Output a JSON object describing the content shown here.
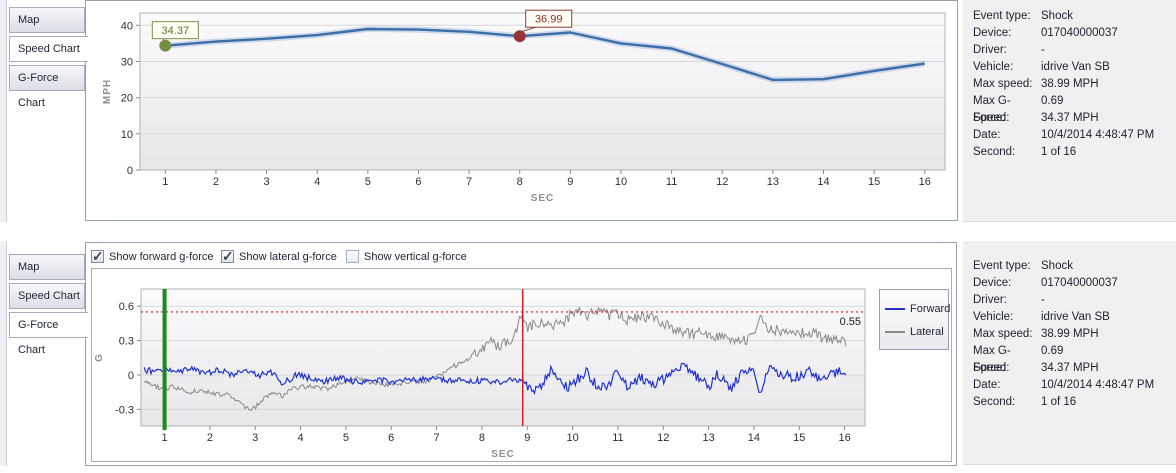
{
  "tabs": [
    {
      "label": "Map"
    },
    {
      "label": "Speed Chart"
    },
    {
      "label": "G-Force Chart"
    }
  ],
  "event_info": {
    "rows": [
      {
        "label": "Event type:",
        "value": "Shock"
      },
      {
        "label": "Device:",
        "value": "017040000037"
      },
      {
        "label": "Driver:",
        "value": "-"
      },
      {
        "label": "Vehicle:",
        "value": "idrive Van SB"
      },
      {
        "label": "Max speed:",
        "value": "38.99 MPH"
      },
      {
        "label": "Max G-Force:",
        "value": "0.69"
      },
      {
        "label": "Speed:",
        "value": "34.37 MPH"
      },
      {
        "label": "Date:",
        "value": "10/4/2014 4:48:47 PM"
      },
      {
        "label": "Second:",
        "value": "1 of 16"
      }
    ]
  },
  "gforce_controls": {
    "checkboxes": [
      {
        "label": "Show forward g-force",
        "checked": true
      },
      {
        "label": "Show lateral g-force",
        "checked": true
      },
      {
        "label": "Show vertical g-force",
        "checked": false
      }
    ]
  },
  "chart_data": [
    {
      "id": "speed",
      "type": "line",
      "title": "Speed Chart",
      "xlabel": "SEC",
      "ylabel": "MPH",
      "x": [
        1,
        2,
        3,
        4,
        5,
        6,
        7,
        8,
        9,
        10,
        11,
        12,
        13,
        14,
        15,
        16
      ],
      "values": [
        34.37,
        35.5,
        36.3,
        37.3,
        38.99,
        38.8,
        38.2,
        36.99,
        38.0,
        35.0,
        33.6,
        29.3,
        24.9,
        25.1,
        27.4,
        29.4
      ],
      "xticks": [
        1,
        2,
        3,
        4,
        5,
        6,
        7,
        8,
        9,
        10,
        11,
        12,
        13,
        14,
        15,
        16
      ],
      "yticks": [
        0,
        10,
        20,
        30,
        40
      ],
      "xlim": [
        0.5,
        16.4
      ],
      "ylim": [
        0,
        43.4
      ],
      "grid": "horizontal",
      "line_color": "#3c6ea8",
      "markers": [
        {
          "x": 1,
          "value": 34.37,
          "label": "34.37",
          "dot_color": "#6f8f3f",
          "text_color": "#66732f",
          "border_color": "#7e8f4a"
        },
        {
          "x": 8,
          "value": 36.99,
          "label": "36.99",
          "dot_color": "#9e3039",
          "text_color": "#8b2f2f",
          "border_color": "#8b3a3a"
        }
      ]
    },
    {
      "id": "gforce",
      "type": "line",
      "title": "G-Force Chart",
      "xlabel": "SEC",
      "ylabel": "G",
      "xticks": [
        1,
        2,
        3,
        4,
        5,
        6,
        7,
        8,
        9,
        10,
        11,
        12,
        13,
        14,
        15,
        16
      ],
      "yticks": [
        -0.3,
        0,
        0.3,
        0.6
      ],
      "ytick_labels": [
        "-0.3",
        "0",
        "0.3",
        "0.6"
      ],
      "xlim": [
        0.48,
        16.45
      ],
      "ylim": [
        -0.445,
        0.75
      ],
      "grid": "horizontal",
      "legend_position": "right",
      "threshold": {
        "value": 0.55,
        "label": "0.55",
        "color": "#e01010"
      },
      "vlines": [
        {
          "name": "start-second-line",
          "x": 1,
          "color": "#1a8a1a",
          "width": 4
        },
        {
          "name": "event-second-line",
          "x": 8.9,
          "color": "#cc2020",
          "width": 1.5
        }
      ],
      "series": [
        {
          "name": "Forward",
          "color": "#2233cc",
          "noise_amp": 0.028,
          "noise_hi_from": 9,
          "noise_hi_mult": 1.6,
          "keypoints": [
            [
              0.55,
              0.05
            ],
            [
              0.8,
              0.02
            ],
            [
              1.0,
              0.06
            ],
            [
              1.3,
              0.03
            ],
            [
              1.6,
              0.05
            ],
            [
              1.9,
              0.02
            ],
            [
              2.2,
              0.04
            ],
            [
              2.5,
              0.0
            ],
            [
              2.8,
              0.03
            ],
            [
              3.1,
              0.0
            ],
            [
              3.4,
              0.02
            ],
            [
              3.6,
              -0.08
            ],
            [
              3.9,
              0.0
            ],
            [
              4.2,
              -0.03
            ],
            [
              4.5,
              -0.06
            ],
            [
              4.8,
              -0.02
            ],
            [
              5.1,
              -0.05
            ],
            [
              5.4,
              -0.07
            ],
            [
              5.7,
              -0.04
            ],
            [
              6.0,
              -0.06
            ],
            [
              6.3,
              -0.02
            ],
            [
              6.6,
              -0.05
            ],
            [
              6.9,
              -0.02
            ],
            [
              7.2,
              -0.05
            ],
            [
              7.5,
              -0.03
            ],
            [
              7.8,
              -0.06
            ],
            [
              8.1,
              -0.04
            ],
            [
              8.4,
              -0.07
            ],
            [
              8.7,
              -0.03
            ],
            [
              8.95,
              -0.05
            ],
            [
              9.1,
              -0.16
            ],
            [
              9.3,
              -0.1
            ],
            [
              9.5,
              0.04
            ],
            [
              9.7,
              -0.04
            ],
            [
              9.9,
              -0.11
            ],
            [
              10.1,
              -0.04
            ],
            [
              10.3,
              0.03
            ],
            [
              10.5,
              -0.08
            ],
            [
              10.8,
              -0.1
            ],
            [
              11.0,
              0.04
            ],
            [
              11.2,
              -0.11
            ],
            [
              11.5,
              -0.03
            ],
            [
              11.8,
              -0.08
            ],
            [
              12.0,
              -0.04
            ],
            [
              12.3,
              0.06
            ],
            [
              12.5,
              0.07
            ],
            [
              12.8,
              -0.04
            ],
            [
              13.0,
              -0.1
            ],
            [
              13.2,
              0.01
            ],
            [
              13.5,
              -0.12
            ],
            [
              13.8,
              0.06
            ],
            [
              14.0,
              0.04
            ],
            [
              14.15,
              -0.2
            ],
            [
              14.3,
              0.05
            ],
            [
              14.6,
              0.0
            ],
            [
              14.9,
              -0.02
            ],
            [
              15.2,
              0.04
            ],
            [
              15.5,
              -0.04
            ],
            [
              15.8,
              0.02
            ],
            [
              16.05,
              0.04
            ]
          ]
        },
        {
          "name": "Lateral",
          "color": "#8a8a8a",
          "noise_amp": 0.022,
          "noise_hi_from": 7.8,
          "noise_hi_mult": 2.2,
          "keypoints": [
            [
              0.55,
              -0.04
            ],
            [
              0.8,
              -0.1
            ],
            [
              1.0,
              -0.13
            ],
            [
              1.2,
              -0.1
            ],
            [
              1.5,
              -0.15
            ],
            [
              1.8,
              -0.13
            ],
            [
              2.1,
              -0.16
            ],
            [
              2.4,
              -0.18
            ],
            [
              2.6,
              -0.22
            ],
            [
              2.8,
              -0.3
            ],
            [
              3.0,
              -0.28
            ],
            [
              3.2,
              -0.2
            ],
            [
              3.4,
              -0.15
            ],
            [
              3.6,
              -0.19
            ],
            [
              3.8,
              -0.12
            ],
            [
              4.2,
              -0.1
            ],
            [
              4.6,
              -0.12
            ],
            [
              5.0,
              -0.06
            ],
            [
              5.3,
              -0.03
            ],
            [
              5.6,
              -0.07
            ],
            [
              6.0,
              -0.09
            ],
            [
              6.4,
              -0.07
            ],
            [
              6.8,
              -0.05
            ],
            [
              7.1,
              0.0
            ],
            [
              7.4,
              0.08
            ],
            [
              7.7,
              0.14
            ],
            [
              8.0,
              0.22
            ],
            [
              8.2,
              0.3
            ],
            [
              8.35,
              0.24
            ],
            [
              8.5,
              0.28
            ],
            [
              8.7,
              0.33
            ],
            [
              8.85,
              0.5
            ],
            [
              9.0,
              0.42
            ],
            [
              9.2,
              0.45
            ],
            [
              9.5,
              0.43
            ],
            [
              9.8,
              0.47
            ],
            [
              10.1,
              0.58
            ],
            [
              10.3,
              0.5
            ],
            [
              10.5,
              0.55
            ],
            [
              10.8,
              0.52
            ],
            [
              11.0,
              0.55
            ],
            [
              11.2,
              0.48
            ],
            [
              11.5,
              0.5
            ],
            [
              11.8,
              0.5
            ],
            [
              12.0,
              0.44
            ],
            [
              12.3,
              0.4
            ],
            [
              12.6,
              0.35
            ],
            [
              12.9,
              0.38
            ],
            [
              13.2,
              0.33
            ],
            [
              13.5,
              0.29
            ],
            [
              13.8,
              0.3
            ],
            [
              14.0,
              0.35
            ],
            [
              14.15,
              0.55
            ],
            [
              14.3,
              0.42
            ],
            [
              14.6,
              0.37
            ],
            [
              14.9,
              0.34
            ],
            [
              15.2,
              0.38
            ],
            [
              15.5,
              0.33
            ],
            [
              15.8,
              0.3
            ],
            [
              16.05,
              0.27
            ]
          ]
        }
      ]
    }
  ]
}
